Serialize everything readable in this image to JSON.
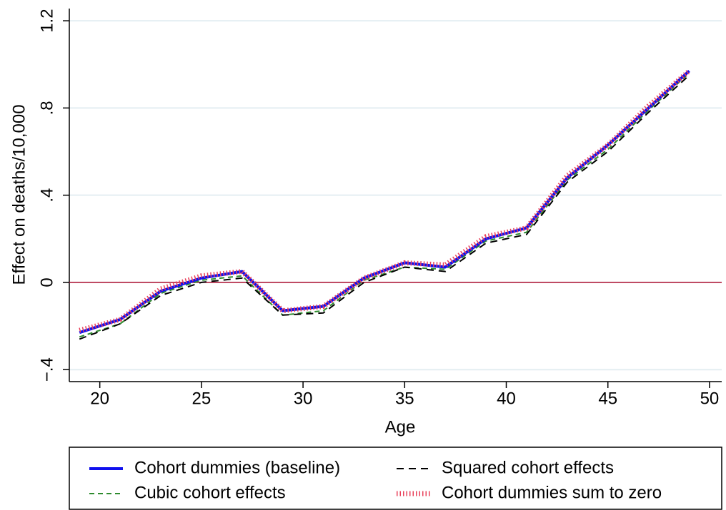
{
  "chart_data": {
    "type": "line",
    "x_label": "Age",
    "y_label": "Effect on deaths/10,000",
    "x": [
      19,
      21,
      23,
      25,
      27,
      29,
      31,
      33,
      35,
      37,
      39,
      41,
      43,
      45,
      47,
      49
    ],
    "series": [
      {
        "name": "Cubic cohort effects",
        "color": "#2e8b2e",
        "dash": "dash",
        "width": 2,
        "values": [
          -0.25,
          -0.19,
          -0.05,
          0.01,
          0.03,
          -0.15,
          -0.13,
          0.01,
          0.07,
          0.06,
          0.19,
          0.23,
          0.47,
          0.61,
          0.79,
          0.96
        ]
      },
      {
        "name": "Squared cohort effects",
        "color": "#000000",
        "dash": "longdash",
        "width": 2,
        "values": [
          -0.26,
          -0.19,
          -0.06,
          0.0,
          0.02,
          -0.15,
          -0.14,
          0.0,
          0.07,
          0.05,
          0.18,
          0.22,
          0.46,
          0.6,
          0.78,
          0.95
        ]
      },
      {
        "name": "Cohort dummies (baseline)",
        "color": "#1010ee",
        "dash": "solid",
        "width": 4,
        "values": [
          -0.23,
          -0.17,
          -0.04,
          0.02,
          0.05,
          -0.13,
          -0.11,
          0.02,
          0.09,
          0.07,
          0.2,
          0.25,
          0.48,
          0.63,
          0.8,
          0.97
        ]
      },
      {
        "name": "Cohort dummies sum to zero",
        "color": "#e8405a",
        "dash": "dot",
        "width": 7,
        "values": [
          -0.22,
          -0.17,
          -0.03,
          0.03,
          0.05,
          -0.13,
          -0.11,
          0.02,
          0.09,
          0.08,
          0.21,
          0.25,
          0.49,
          0.63,
          0.81,
          0.97
        ]
      }
    ],
    "legend_order": [
      2,
      1,
      0,
      3
    ],
    "xlim": [
      18.5,
      50.6
    ],
    "xticks": [
      20,
      25,
      30,
      35,
      40,
      45,
      50
    ],
    "ylim": [
      -0.455,
      1.256
    ],
    "yticks": [
      {
        "value": -0.4,
        "label": "−.4"
      },
      0,
      {
        "value": 0.4,
        "label": ".4"
      },
      {
        "value": 0.8,
        "label": ".8"
      },
      {
        "value": 1.2,
        "label": "1.2"
      }
    ],
    "grid": true,
    "grid_color": "#e4eef2",
    "reference_line": 0,
    "reference_color": "#b01030",
    "legend": "bottom"
  }
}
